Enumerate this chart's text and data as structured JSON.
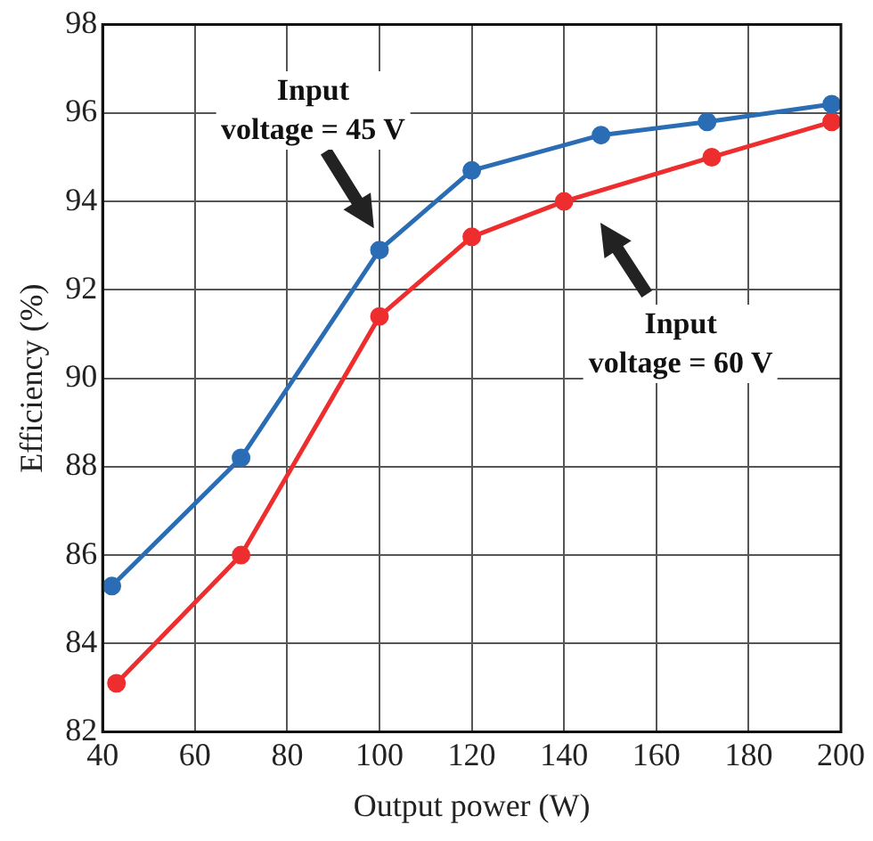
{
  "chart_data": {
    "type": "line",
    "xlabel": "Output power (W)",
    "ylabel": "Efficiency (%)",
    "xlim": [
      40,
      200
    ],
    "xticks": [
      40,
      60,
      80,
      100,
      120,
      140,
      160,
      180,
      200
    ],
    "ylim": [
      82,
      98
    ],
    "yticks": [
      82,
      84,
      86,
      88,
      90,
      92,
      94,
      96,
      98
    ],
    "grid": true,
    "legend": false,
    "marker": "circle",
    "line_style": "solid",
    "series": [
      {
        "color": "#2a6db5",
        "x": [
          42,
          70,
          100,
          120,
          148,
          171,
          198
        ],
        "values": [
          85.3,
          88.2,
          92.9,
          94.7,
          95.5,
          95.8,
          96.2
        ]
      },
      {
        "color": "#ee2e2e",
        "x": [
          43,
          70,
          100,
          120,
          140,
          172,
          198
        ],
        "values": [
          83.1,
          86.0,
          91.4,
          93.2,
          94.0,
          95.0,
          95.8
        ]
      }
    ],
    "annotations": [
      "Input\nvoltage = 45 V",
      "Input\nvoltage = 60 V"
    ]
  }
}
